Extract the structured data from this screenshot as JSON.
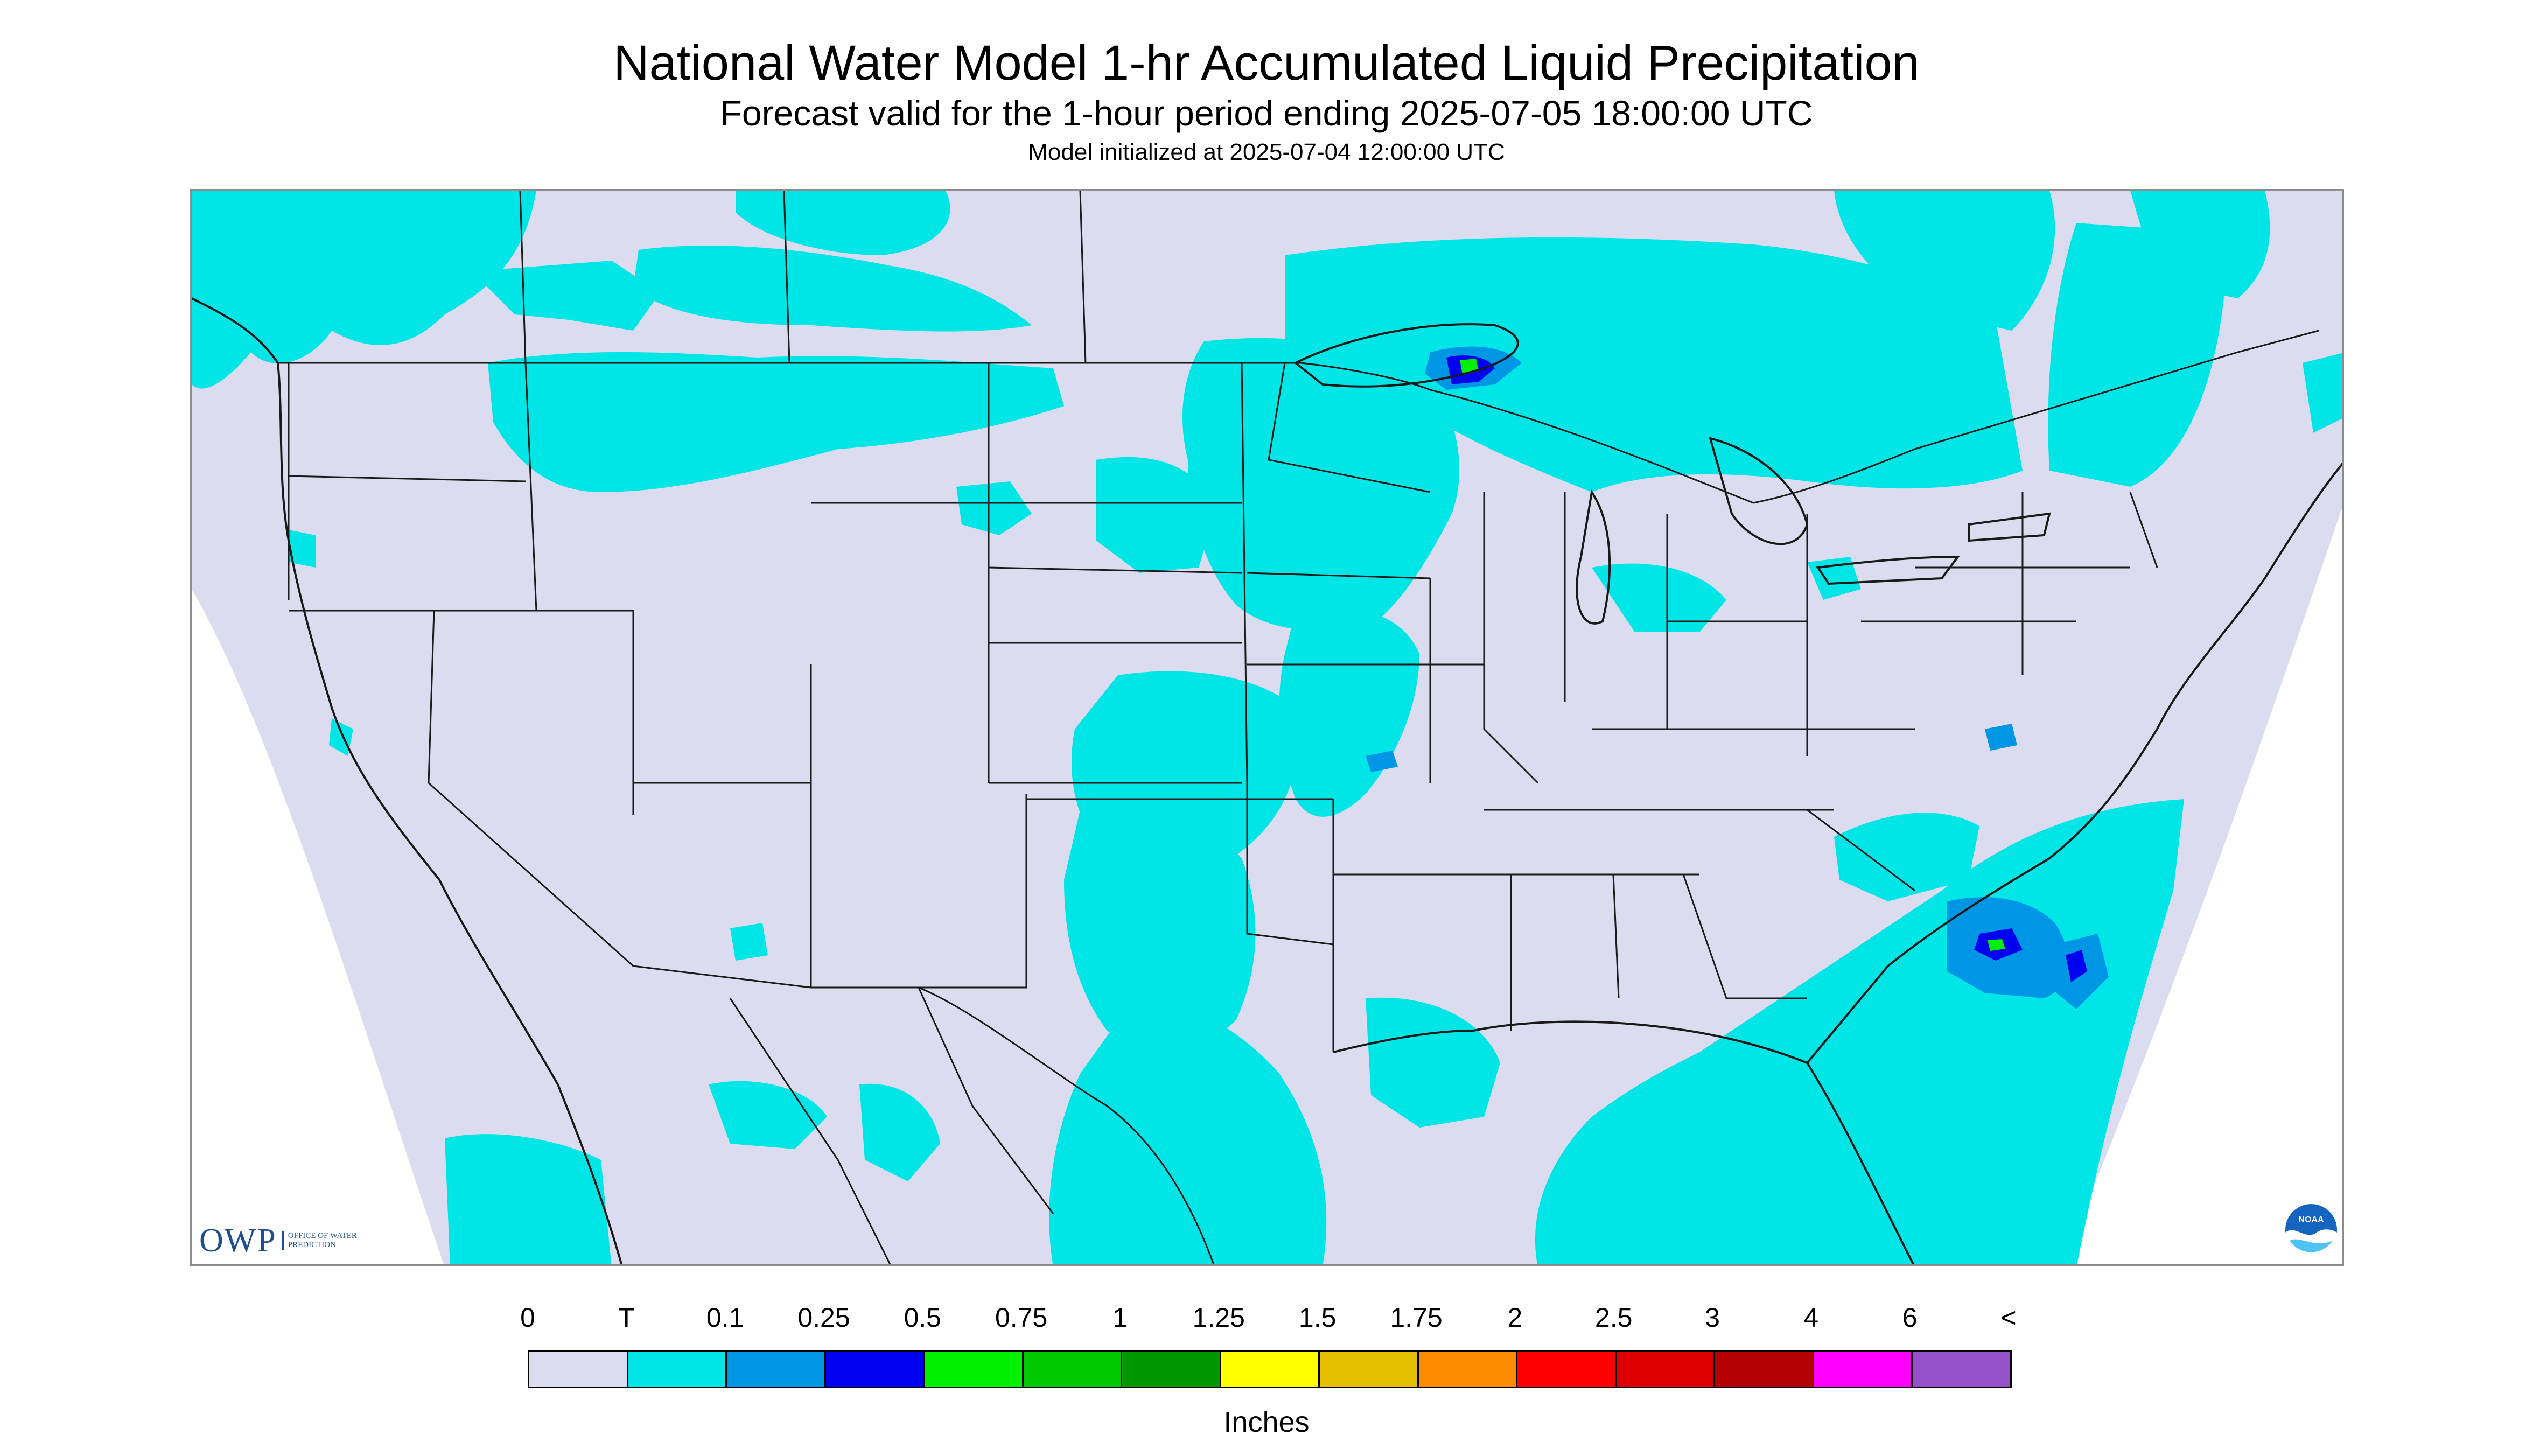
{
  "header": {
    "title": "National Water Model 1-hr Accumulated Liquid Precipitation",
    "subtitle": "Forecast valid for the 1-hour period ending 2025-07-05 18:00:00 UTC",
    "init_line": "Model initialized at 2025-07-04 12:00:00 UTC"
  },
  "logos": {
    "owp_text": "OWP",
    "owp_subtext": "OFFICE OF WATER PREDICTION",
    "noaa_text": "NOAA"
  },
  "legend": {
    "labels": [
      "0",
      "T",
      "0.1",
      "0.25",
      "0.5",
      "0.75",
      "1",
      "1.25",
      "1.5",
      "1.75",
      "2",
      "2.5",
      "3",
      "4",
      "6",
      "<"
    ],
    "colors": [
      "#dcdcf0",
      "#00e6e6",
      "#0096e6",
      "#0000f0",
      "#00f000",
      "#00c800",
      "#009600",
      "#ffff00",
      "#e6be00",
      "#ff8c00",
      "#ff0000",
      "#dc0000",
      "#b40000",
      "#ff00ff",
      "#9650c8"
    ],
    "units": "Inches"
  },
  "map_colors": {
    "nodata": "#ffffff",
    "zero": "#dcdcf0",
    "trace": "#00e6e6",
    "light": "#0096e6",
    "moderate": "#0000f0",
    "heavy": "#00f000",
    "border": "#1a1a1a"
  }
}
